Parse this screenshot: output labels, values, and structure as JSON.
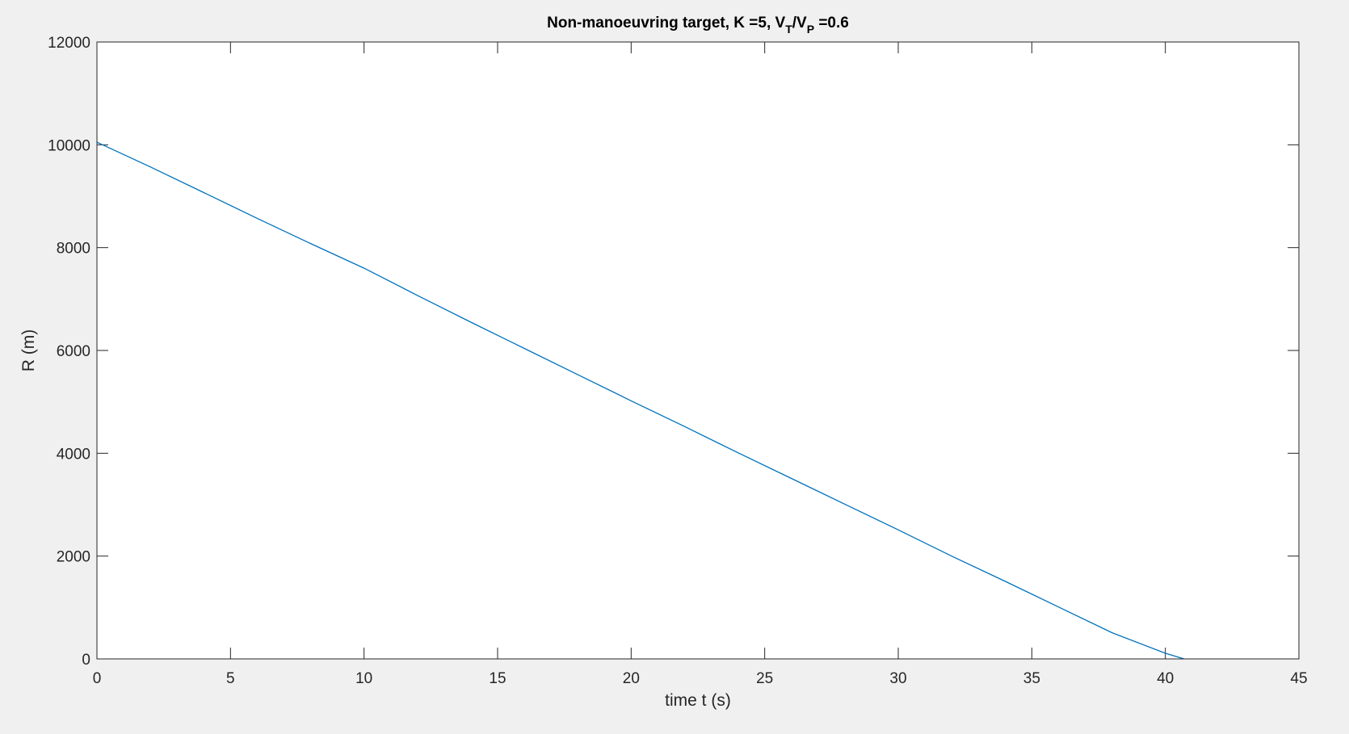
{
  "window": {
    "background": "#f0f0f0"
  },
  "chart_data": {
    "type": "line",
    "title": {
      "text": "Non-manoeuvring target,   K =5,   V",
      "sub1": "T",
      "mid": "/V",
      "sub2": "P",
      "tail": " =0.6"
    },
    "xlabel": "time t (s)",
    "ylabel": "R (m)",
    "xlim": [
      0,
      45
    ],
    "ylim": [
      0,
      12000
    ],
    "xticks": [
      0,
      5,
      10,
      15,
      20,
      25,
      30,
      35,
      40,
      45
    ],
    "yticks": [
      0,
      2000,
      4000,
      6000,
      8000,
      10000,
      12000
    ],
    "grid": false,
    "box": true,
    "line_color": "#0072bd",
    "series": [
      {
        "x": [
          0,
          2,
          4,
          6,
          8,
          10,
          12,
          14,
          16,
          18,
          20,
          22,
          24,
          26,
          28,
          30,
          32,
          34,
          36,
          38,
          40,
          40.7
        ],
        "values": [
          10050,
          9570,
          9070,
          8570,
          8080,
          7600,
          7070,
          6550,
          6040,
          5530,
          5020,
          4520,
          4010,
          3510,
          3010,
          2510,
          2000,
          1510,
          1010,
          510,
          110,
          0
        ]
      }
    ]
  }
}
